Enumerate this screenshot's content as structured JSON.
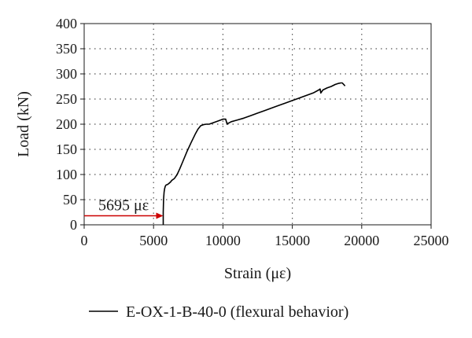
{
  "chart_data": {
    "type": "line",
    "title": "",
    "xlabel": "Strain (με)",
    "ylabel": "Load (kN)",
    "xlim": [
      0,
      25000
    ],
    "ylim": [
      0,
      400
    ],
    "xticks": [
      0,
      5000,
      10000,
      15000,
      20000,
      25000
    ],
    "yticks": [
      0,
      50,
      100,
      150,
      200,
      250,
      300,
      350,
      400
    ],
    "grid": "dotted",
    "legend_position": "bottom",
    "colors": {
      "series": "#000000",
      "annotation": "#cc0000",
      "grid": "#555555"
    },
    "annotations": [
      {
        "text": "5695 με",
        "arrow_from": [
          0,
          18
        ],
        "arrow_to": [
          5695,
          18
        ],
        "color": "#cc0000"
      }
    ],
    "series": [
      {
        "name": "E-OX-1-B-40-0 (flexural behavior)",
        "x": [
          5695,
          5700,
          5720,
          5760,
          5800,
          5850,
          5900,
          6000,
          6100,
          6250,
          6300,
          6400,
          6500,
          6700,
          6900,
          7100,
          7400,
          7700,
          8000,
          8200,
          8400,
          8600,
          8800,
          9000,
          9300,
          9600,
          10000,
          10200,
          10300,
          10350,
          10400,
          10600,
          11000,
          11500,
          12000,
          12500,
          13000,
          13500,
          14000,
          14500,
          15000,
          15500,
          16000,
          16500,
          16900,
          17000,
          17050,
          17200,
          17500,
          17800,
          18100,
          18300,
          18500,
          18600,
          18700,
          18800
        ],
        "y": [
          0,
          25,
          50,
          65,
          72,
          77,
          79,
          80,
          82,
          86,
          88,
          90,
          92,
          100,
          112,
          125,
          145,
          163,
          180,
          190,
          197,
          199,
          200,
          200,
          203,
          206,
          210,
          210,
          200,
          202,
          202,
          205,
          208,
          212,
          217,
          222,
          227,
          232,
          237,
          242,
          247,
          252,
          257,
          262,
          268,
          270,
          262,
          268,
          272,
          275,
          279,
          281,
          282,
          282,
          279,
          276
        ]
      }
    ]
  }
}
